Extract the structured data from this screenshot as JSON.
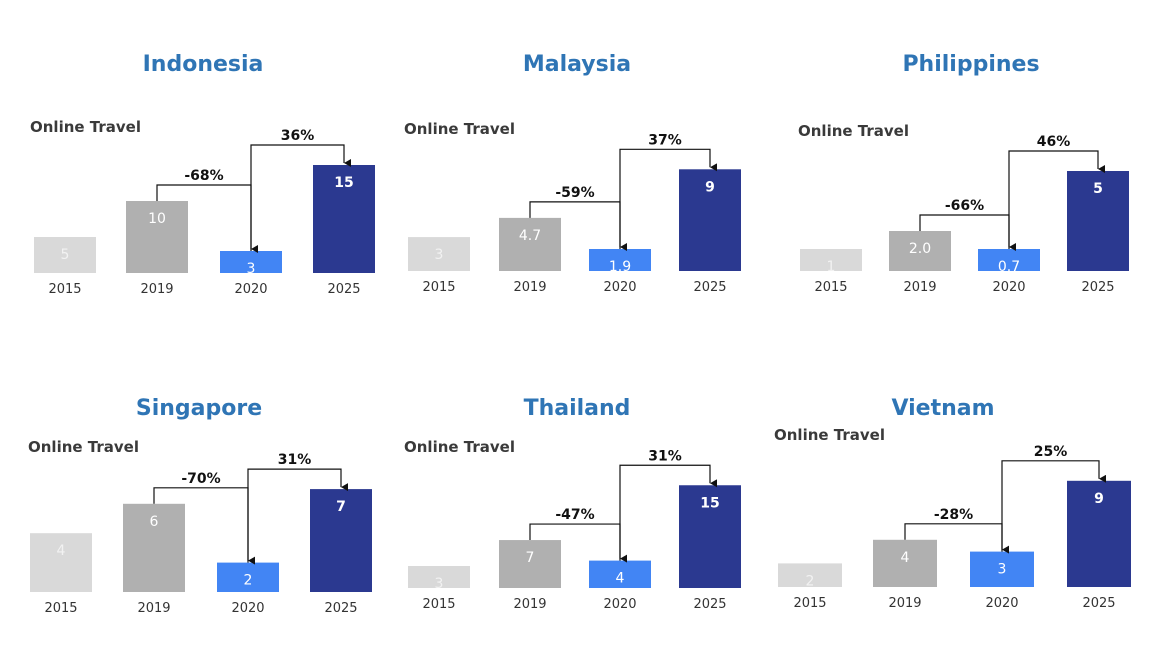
{
  "colors": {
    "title": "#2f75b5",
    "2015": "#d9d9d9",
    "2019": "#b0b0b0",
    "2020": "#4285f4",
    "2025": "#2b3990",
    "label_light": "#ffffff",
    "label_2015": "#f2f2f2"
  },
  "chart_data": [
    {
      "type": "bar",
      "title": "Indonesia",
      "subtitle": "Online Travel",
      "categories": [
        "2015",
        "2019",
        "2020",
        "2025"
      ],
      "values": [
        5,
        10,
        3,
        15
      ],
      "value_labels": [
        "5",
        "10",
        "3",
        "15"
      ],
      "annotations": [
        {
          "from": "2019",
          "to": "2020",
          "label": "-68%"
        },
        {
          "from": "2020",
          "to": "2025",
          "label": "36%"
        }
      ]
    },
    {
      "type": "bar",
      "title": "Malaysia",
      "subtitle": "Online Travel",
      "categories": [
        "2015",
        "2019",
        "2020",
        "2025"
      ],
      "values": [
        3,
        4.7,
        1.9,
        9
      ],
      "value_labels": [
        "3",
        "4.7",
        "1.9",
        "9"
      ],
      "annotations": [
        {
          "from": "2019",
          "to": "2020",
          "label": "-59%"
        },
        {
          "from": "2020",
          "to": "2025",
          "label": "37%"
        }
      ]
    },
    {
      "type": "bar",
      "title": "Philippines",
      "subtitle": "Online Travel",
      "categories": [
        "2015",
        "2019",
        "2020",
        "2025"
      ],
      "values": [
        1,
        2.0,
        0.7,
        5
      ],
      "value_labels": [
        "1",
        "2.0",
        "0.7",
        "5"
      ],
      "annotations": [
        {
          "from": "2019",
          "to": "2020",
          "label": "-66%"
        },
        {
          "from": "2020",
          "to": "2025",
          "label": "46%"
        }
      ]
    },
    {
      "type": "bar",
      "title": "Singapore",
      "subtitle": "Online Travel",
      "categories": [
        "2015",
        "2019",
        "2020",
        "2025"
      ],
      "values": [
        4,
        6,
        2,
        7
      ],
      "value_labels": [
        "4",
        "6",
        "2",
        "7"
      ],
      "annotations": [
        {
          "from": "2019",
          "to": "2020",
          "label": "-70%"
        },
        {
          "from": "2020",
          "to": "2025",
          "label": "31%"
        }
      ]
    },
    {
      "type": "bar",
      "title": "Thailand",
      "subtitle": "Online Travel",
      "categories": [
        "2015",
        "2019",
        "2020",
        "2025"
      ],
      "values": [
        3,
        7,
        4,
        15
      ],
      "value_labels": [
        "3",
        "7",
        "4",
        "15"
      ],
      "annotations": [
        {
          "from": "2019",
          "to": "2020",
          "label": "-47%"
        },
        {
          "from": "2020",
          "to": "2025",
          "label": "31%"
        }
      ]
    },
    {
      "type": "bar",
      "title": "Vietnam",
      "subtitle": "Online Travel",
      "categories": [
        "2015",
        "2019",
        "2020",
        "2025"
      ],
      "values": [
        2,
        4,
        3,
        9
      ],
      "value_labels": [
        "2",
        "4",
        "3",
        "9"
      ],
      "annotations": [
        {
          "from": "2019",
          "to": "2020",
          "label": "-28%"
        },
        {
          "from": "2020",
          "to": "2025",
          "label": "25%"
        }
      ]
    }
  ]
}
